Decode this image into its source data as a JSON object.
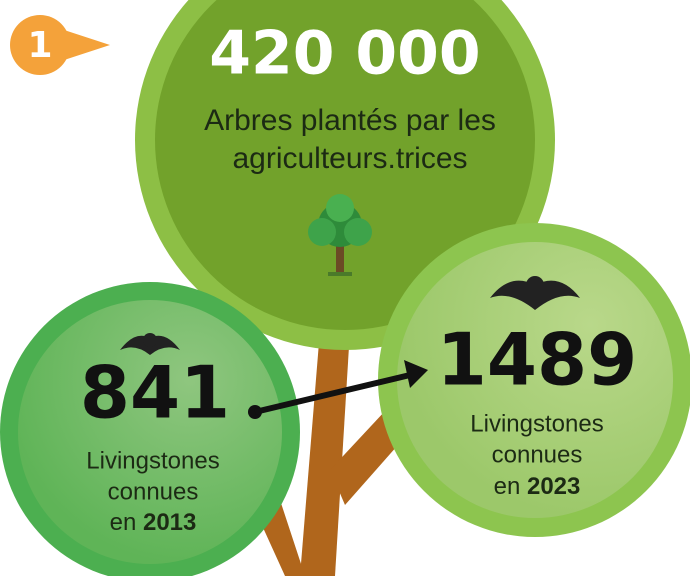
{
  "badge": "1",
  "main": {
    "value": "420 000",
    "label_lines": [
      "Arbres plantés par les",
      "agriculteurs.trices"
    ]
  },
  "left": {
    "value": "841",
    "label_lines": [
      "Livingstones",
      "connues"
    ],
    "prefix": "en",
    "year": "2013"
  },
  "right": {
    "value": "1489",
    "label_lines": [
      "Livingstones",
      "connues"
    ],
    "prefix": "en",
    "year": "2023"
  }
}
